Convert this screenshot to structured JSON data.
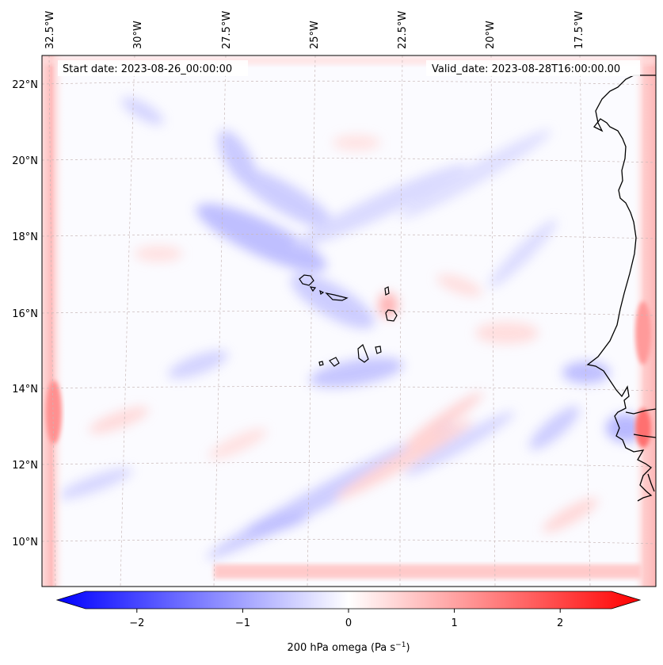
{
  "map": {
    "start_date": "Start date: 2023-08-26_00:00:00",
    "valid_date": "Valid_date: 2023-08-28T16:00:00.00",
    "lon_labels": [
      "32.5°W",
      "30°W",
      "27.5°W",
      "25°W",
      "22.5°W",
      "20°W",
      "17.5°W"
    ],
    "lat_labels": [
      "22°N",
      "20°N",
      "18°N",
      "16°N",
      "14°N",
      "12°N",
      "10°N"
    ],
    "gridlines": true,
    "coastline_color": "#000000"
  },
  "colorbar": {
    "label": "200 hPa omega (Pa s",
    "label_sup": "−1",
    "label_end": ")",
    "ticks": [
      "−2",
      "−1",
      "0",
      "1",
      "2"
    ],
    "tick_values": [
      -2,
      -1,
      0,
      1,
      2
    ],
    "range": [
      -2.5,
      2.5
    ],
    "colormap": "bwr",
    "color_low": "#0000ff",
    "color_mid": "#ffffff",
    "color_high": "#ff0000"
  }
}
